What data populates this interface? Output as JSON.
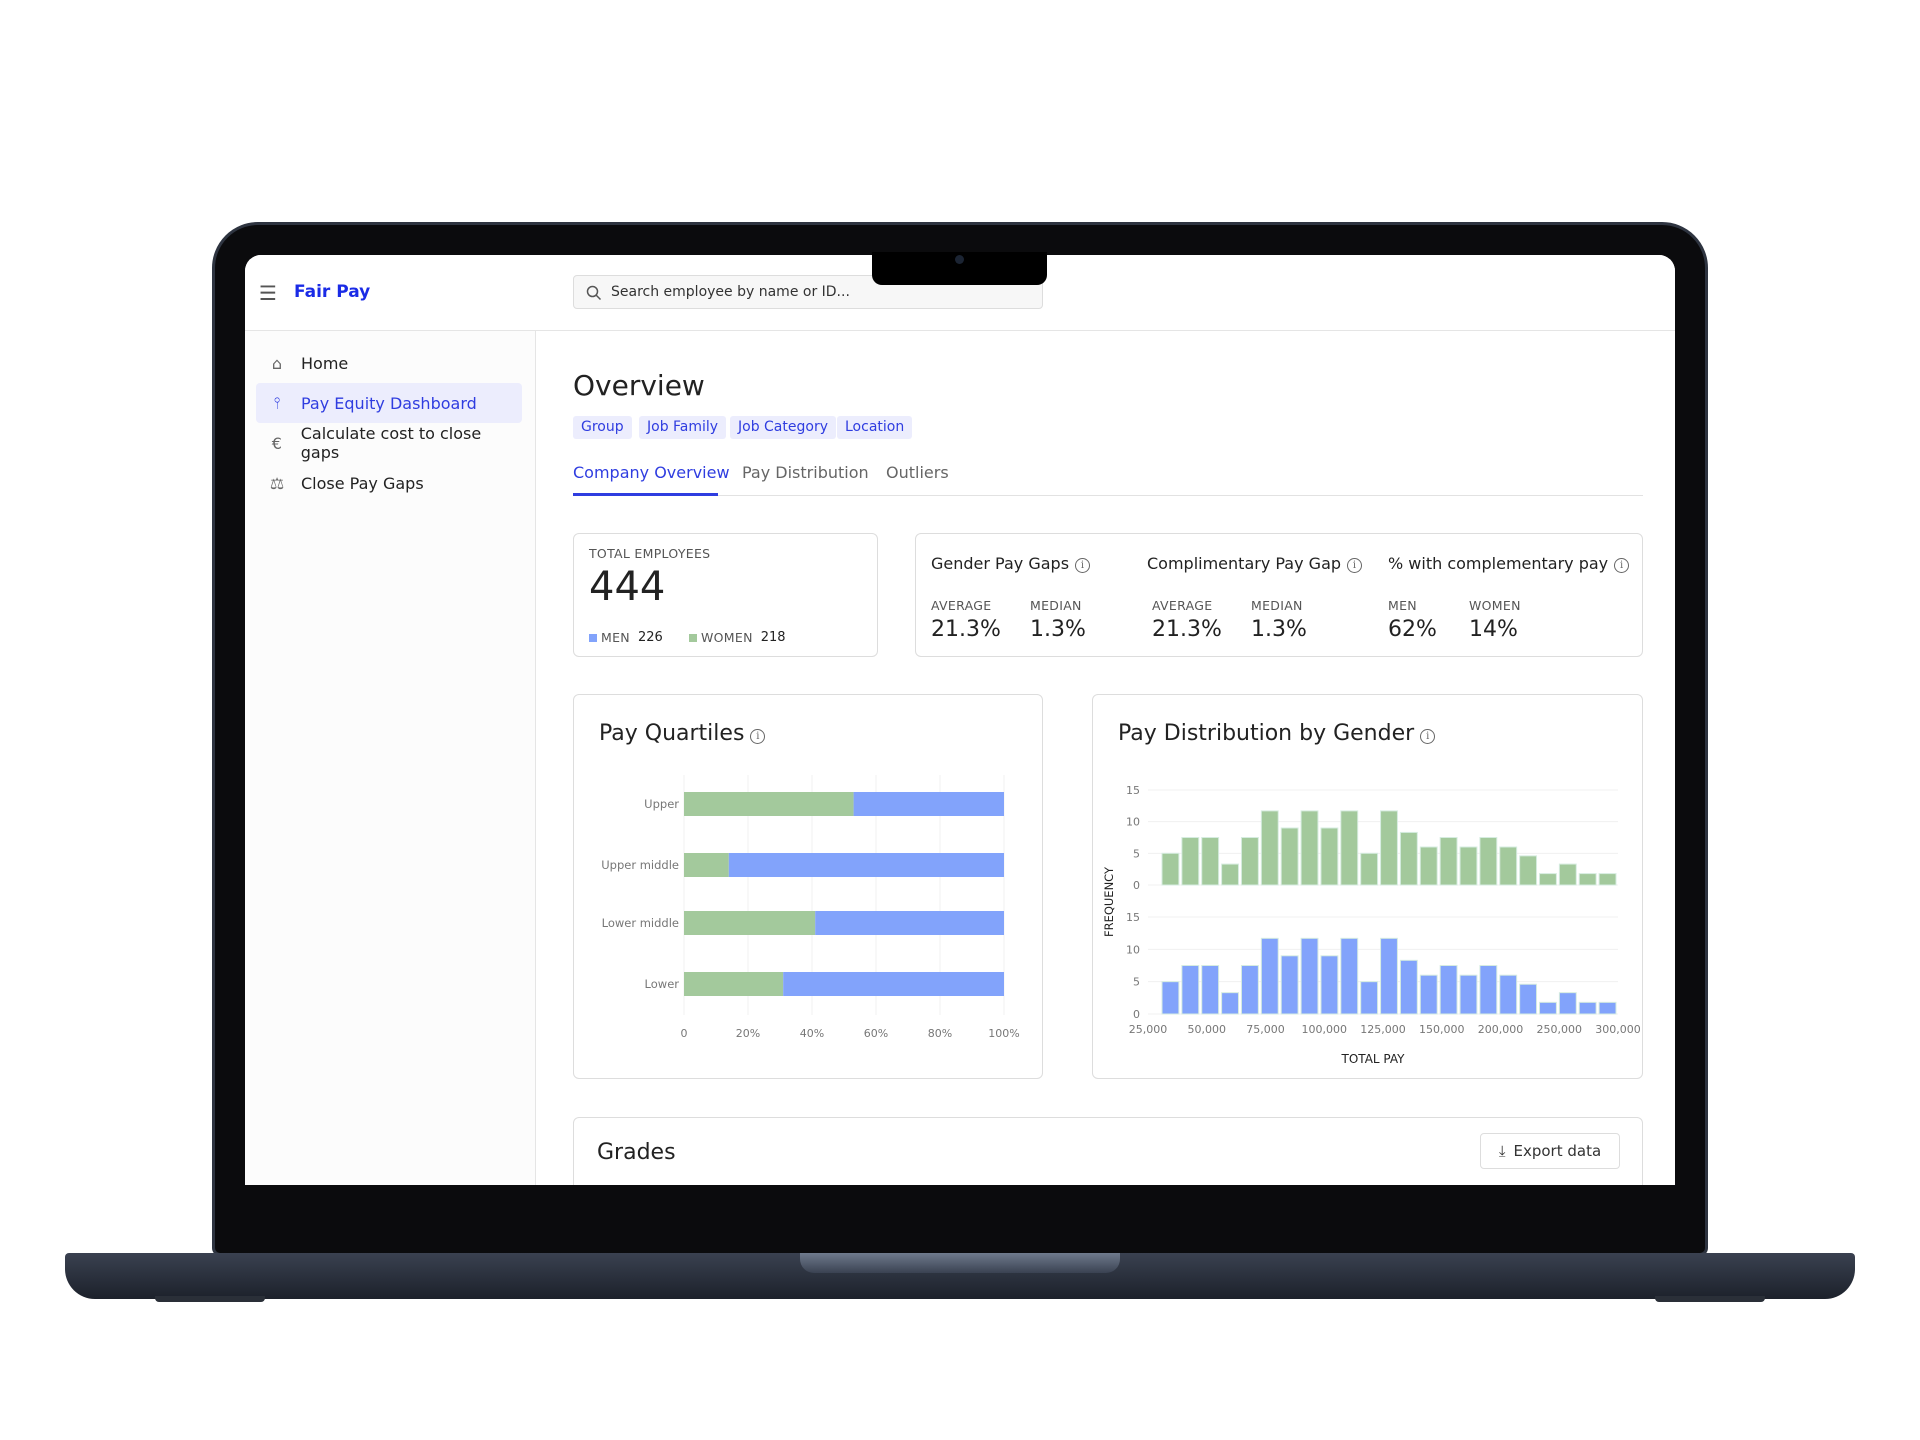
{
  "app": {
    "title": "Fair Pay",
    "menu_icon": "hamburger-icon",
    "search_placeholder": "Search employee by name or ID..."
  },
  "sidebar": {
    "items": [
      {
        "label": "Home",
        "icon": "home-icon",
        "active": false
      },
      {
        "label": "Pay Equity Dashboard",
        "icon": "dashboard-icon",
        "active": true
      },
      {
        "label": "Calculate cost to close gaps",
        "icon": "euro-icon",
        "active": false
      },
      {
        "label": "Close Pay Gaps",
        "icon": "scale-icon",
        "active": false
      }
    ]
  },
  "main": {
    "title": "Overview",
    "filters": [
      "Group",
      "Job Family",
      "Job Category",
      "Location"
    ],
    "tabs": [
      {
        "label": "Company Overview",
        "active": true
      },
      {
        "label": "Pay Distribution",
        "active": false
      },
      {
        "label": "Outliers",
        "active": false
      }
    ]
  },
  "employees": {
    "label": "TOTAL EMPLOYEES",
    "total": "444",
    "men_label": "MEN",
    "men": "226",
    "women_label": "WOMEN",
    "women": "218"
  },
  "stats": {
    "gender_gap": {
      "title": "Gender Pay Gaps",
      "avg_label": "AVERAGE",
      "avg": "21.3%",
      "median_label": "MEDIAN",
      "median": "1.3%"
    },
    "compl_gap": {
      "title": "Complimentary Pay Gap",
      "avg_label": "AVERAGE",
      "avg": "21.3%",
      "median_label": "MEDIAN",
      "median": "1.3%"
    },
    "compl_pct": {
      "title": "% with complementary pay",
      "men_label": "MEN",
      "men": "62%",
      "women_label": "WOMEN",
      "women": "14%"
    }
  },
  "colors": {
    "men": "#82a3fb",
    "women": "#a3c99c",
    "accent": "#2f3de0"
  },
  "grades": {
    "title": "Grades",
    "export_label": "Export data"
  },
  "chart_data": [
    {
      "type": "bar",
      "orientation": "horizontal",
      "stacked": true,
      "title": "Pay Quartiles",
      "categories": [
        "Upper",
        "Upper middle",
        "Lower middle",
        "Lower"
      ],
      "series": [
        {
          "color": "#a3c99c",
          "values": [
            53,
            14,
            41,
            31
          ]
        },
        {
          "color": "#82a3fb",
          "values": [
            47,
            86,
            59,
            69
          ]
        }
      ],
      "xlim": [
        0,
        100
      ],
      "xticks": [
        "0",
        "20%",
        "40%",
        "60%",
        "80%",
        "100%"
      ],
      "grid": true
    },
    {
      "type": "bar",
      "title": "Pay Distribution by Gender",
      "xlabel": "TOTAL PAY",
      "ylabel": "FREQUENCY",
      "xticks": [
        "25,000",
        "50,000",
        "75,000",
        "100,000",
        "125,000",
        "150,000",
        "200,000",
        "250,000",
        "300,000"
      ],
      "yticks": [
        "0",
        "5",
        "10",
        "15"
      ],
      "ylim": [
        0,
        15
      ],
      "grid": true,
      "series": [
        {
          "color": "#a3c99c",
          "values": [
            5,
            7.5,
            7.5,
            3.3,
            7.5,
            11.7,
            9,
            11.7,
            9,
            11.7,
            5,
            11.7,
            8.3,
            6,
            7.5,
            6,
            7.5,
            6,
            4.6,
            1.8,
            3.3,
            1.8,
            1.8
          ]
        },
        {
          "color": "#82a3fb",
          "values": [
            5,
            7.5,
            7.5,
            3.3,
            7.5,
            11.7,
            9,
            11.7,
            9,
            11.7,
            5,
            11.7,
            8.3,
            6,
            7.5,
            6,
            7.5,
            6,
            4.6,
            1.8,
            3.3,
            1.8,
            1.8
          ]
        }
      ]
    }
  ]
}
